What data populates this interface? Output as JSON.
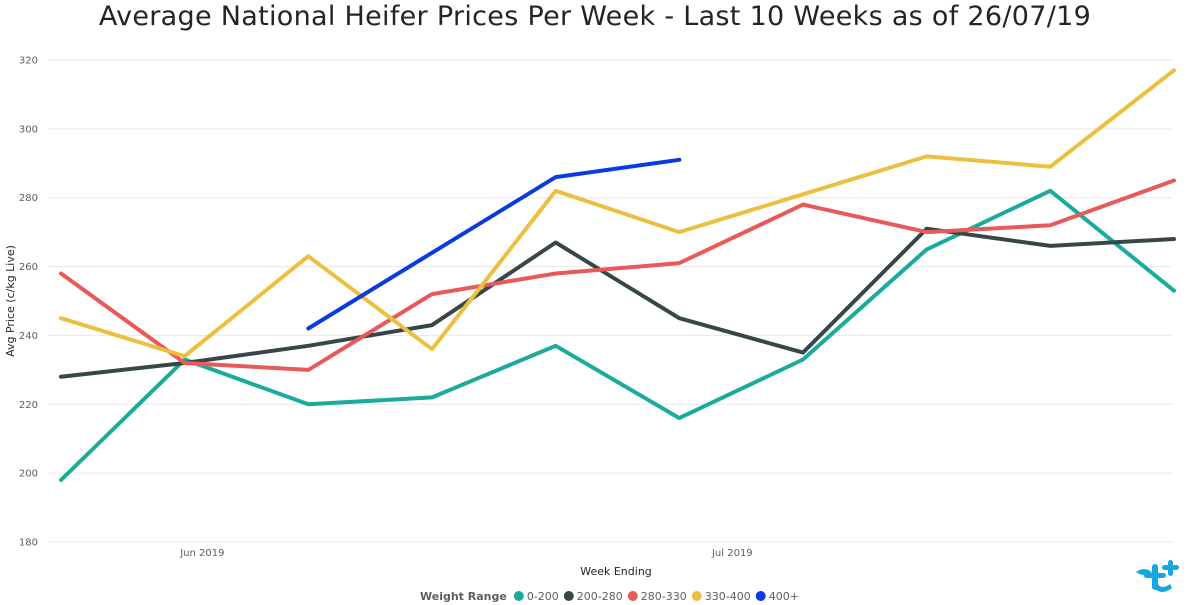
{
  "chart_data": {
    "type": "line",
    "title": "Average National Heifer Prices Per Week - Last 10 Weeks as of 26/07/19",
    "xlabel": "Week Ending",
    "ylabel": "Avg Price (c/kg Live)",
    "ylim": [
      180,
      320
    ],
    "yticks": [
      180,
      200,
      220,
      240,
      260,
      280,
      300,
      320
    ],
    "x": [
      "2019-05-24",
      "2019-05-31",
      "2019-06-07",
      "2019-06-14",
      "2019-06-21",
      "2019-06-28",
      "2019-07-05",
      "2019-07-12",
      "2019-07-19",
      "2019-07-26"
    ],
    "xtick_labels": [
      {
        "label": "Jun 2019",
        "date": "2019-06-01"
      },
      {
        "label": "Jul 2019",
        "date": "2019-07-01"
      }
    ],
    "grid": true,
    "legend_title": "Weight Range",
    "legend_position": "bottom",
    "series": [
      {
        "name": "0-200",
        "color": "#1aab9b",
        "values": [
          198,
          233,
          220,
          222,
          237,
          216,
          233,
          265,
          282,
          253
        ]
      },
      {
        "name": "200-280",
        "color": "#374649",
        "values": [
          228,
          232,
          237,
          243,
          267,
          245,
          235,
          271,
          266,
          268
        ]
      },
      {
        "name": "280-330",
        "color": "#e8595a",
        "values": [
          258,
          232,
          230,
          252,
          258,
          261,
          278,
          270,
          272,
          285
        ]
      },
      {
        "name": "330-400",
        "color": "#ebc03e",
        "values": [
          245,
          234,
          263,
          236,
          282,
          270,
          281,
          292,
          289,
          317
        ]
      },
      {
        "name": "400+",
        "color": "#0a3be0",
        "values": [
          null,
          null,
          242,
          264,
          286,
          291,
          null,
          null,
          null,
          null
        ]
      }
    ]
  },
  "logo": {
    "name": "brand-logo",
    "color": "#1aa7e0"
  }
}
